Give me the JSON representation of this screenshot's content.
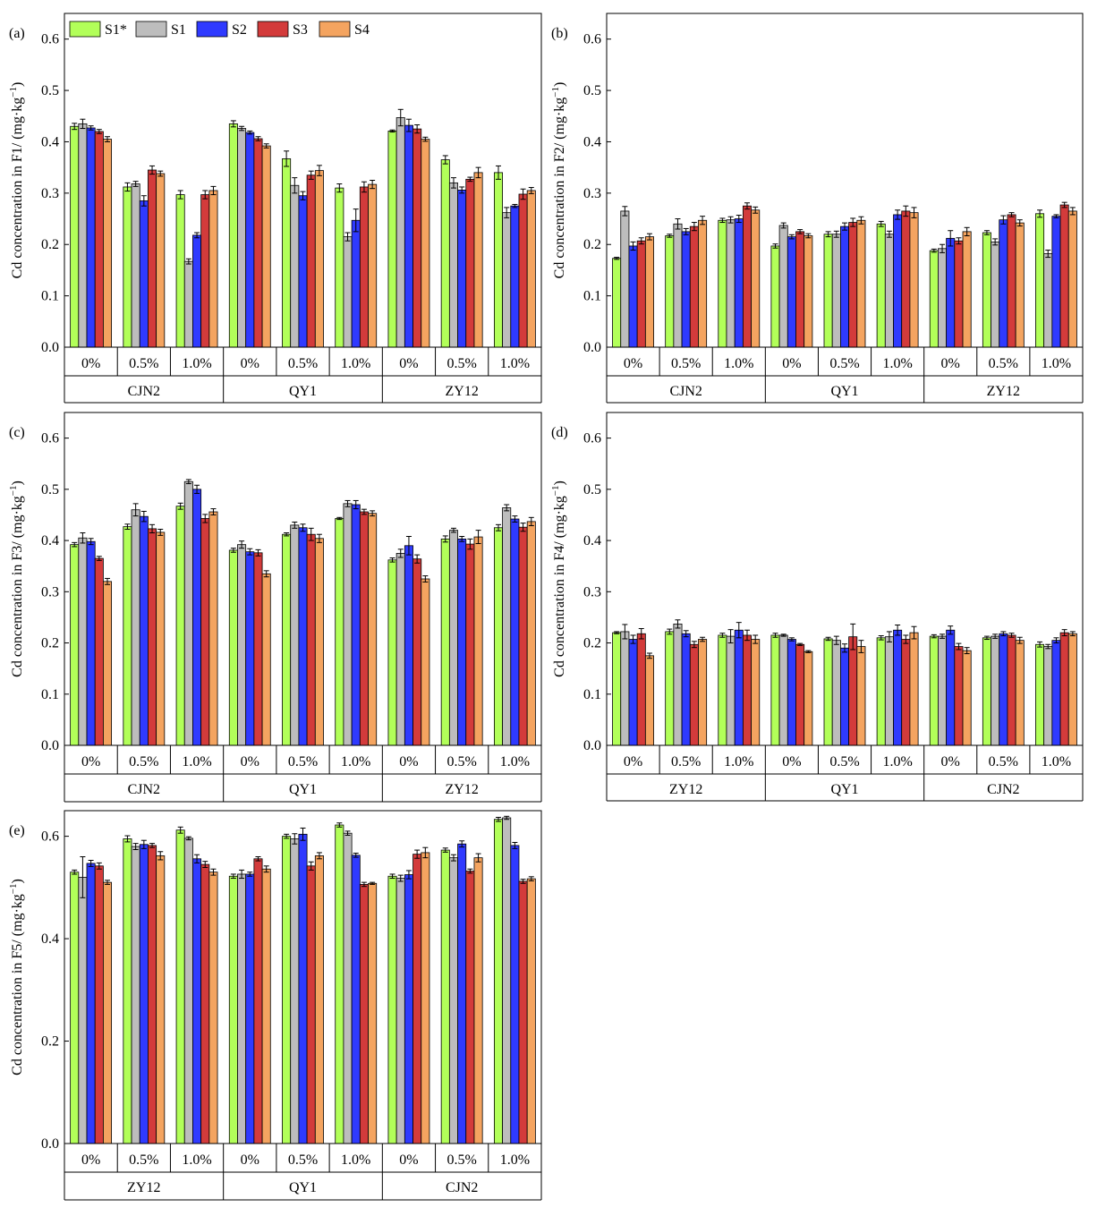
{
  "legend": [
    {
      "key": "S1*",
      "color": "#b2ff59"
    },
    {
      "key": "S1",
      "color": "#bdbdbd"
    },
    {
      "key": "S2",
      "color": "#2f3aff"
    },
    {
      "key": "S3",
      "color": "#d33b3b"
    },
    {
      "key": "S4",
      "color": "#f4a460"
    }
  ],
  "chart_data": [
    {
      "type": "bar",
      "panel_label": "(a)",
      "ylabel_main": "Cd concentration in F1/ (mg·kg",
      "ylabel_sup": "−1",
      "ylabel_end": ")",
      "ylim": [
        0,
        0.65
      ],
      "yticks": [
        0,
        0.1,
        0.2,
        0.3,
        0.4,
        0.5,
        0.6
      ],
      "tick_decimals": 1,
      "legend_position": "top-left",
      "groups": [
        "CJN2",
        "QY1",
        "ZY12"
      ],
      "levels": [
        "0%",
        "0.5%",
        "1.0%"
      ],
      "series": [
        "S1*",
        "S1",
        "S2",
        "S3",
        "S4"
      ],
      "values": [
        [
          [
            0.43,
            0.435,
            0.427,
            0.42,
            0.405
          ],
          [
            0.312,
            0.318,
            0.285,
            0.345,
            0.338
          ],
          [
            0.297,
            0.167,
            0.218,
            0.297,
            0.305
          ]
        ],
        [
          [
            0.435,
            0.426,
            0.418,
            0.406,
            0.392
          ],
          [
            0.367,
            0.315,
            0.295,
            0.335,
            0.344
          ],
          [
            0.31,
            0.215,
            0.247,
            0.312,
            0.317
          ]
        ],
        [
          [
            0.421,
            0.447,
            0.432,
            0.425,
            0.405
          ],
          [
            0.365,
            0.32,
            0.306,
            0.327,
            0.34
          ],
          [
            0.34,
            0.262,
            0.275,
            0.298,
            0.305
          ]
        ]
      ],
      "errors": [
        [
          [
            0.006,
            0.009,
            0.004,
            0.004,
            0.005
          ],
          [
            0.008,
            0.005,
            0.01,
            0.008,
            0.005
          ],
          [
            0.008,
            0.005,
            0.005,
            0.008,
            0.008
          ]
        ],
        [
          [
            0.006,
            0.004,
            0.003,
            0.004,
            0.004
          ],
          [
            0.015,
            0.015,
            0.008,
            0.008,
            0.01
          ],
          [
            0.008,
            0.008,
            0.022,
            0.01,
            0.008
          ]
        ],
        [
          [
            0.002,
            0.016,
            0.012,
            0.008,
            0.004
          ],
          [
            0.008,
            0.01,
            0.006,
            0.004,
            0.01
          ],
          [
            0.013,
            0.01,
            0.003,
            0.01,
            0.006
          ]
        ]
      ]
    },
    {
      "type": "bar",
      "panel_label": "(b)",
      "ylabel_main": "Cd concentration in F2/ (mg·kg",
      "ylabel_sup": "−1",
      "ylabel_end": ")",
      "ylim": [
        0,
        0.65
      ],
      "yticks": [
        0,
        0.1,
        0.2,
        0.3,
        0.4,
        0.5,
        0.6
      ],
      "tick_decimals": 1,
      "groups": [
        "CJN2",
        "QY1",
        "ZY12"
      ],
      "levels": [
        "0%",
        "0.5%",
        "1.0%"
      ],
      "series": [
        "S1*",
        "S1",
        "S2",
        "S3",
        "S4"
      ],
      "values": [
        [
          [
            0.173,
            0.265,
            0.197,
            0.207,
            0.215
          ],
          [
            0.217,
            0.24,
            0.225,
            0.235,
            0.247
          ],
          [
            0.247,
            0.248,
            0.25,
            0.275,
            0.267
          ]
        ],
        [
          [
            0.197,
            0.237,
            0.215,
            0.225,
            0.217
          ],
          [
            0.22,
            0.22,
            0.235,
            0.243,
            0.247
          ],
          [
            0.24,
            0.22,
            0.258,
            0.265,
            0.262
          ]
        ],
        [
          [
            0.188,
            0.192,
            0.212,
            0.207,
            0.225
          ],
          [
            0.223,
            0.205,
            0.248,
            0.258,
            0.242
          ],
          [
            0.26,
            0.182,
            0.255,
            0.277,
            0.265
          ]
        ]
      ],
      "errors": [
        [
          [
            0.002,
            0.009,
            0.008,
            0.006,
            0.006
          ],
          [
            0.003,
            0.01,
            0.006,
            0.008,
            0.008
          ],
          [
            0.004,
            0.006,
            0.007,
            0.006,
            0.006
          ]
        ],
        [
          [
            0.004,
            0.005,
            0.004,
            0.004,
            0.004
          ],
          [
            0.005,
            0.006,
            0.007,
            0.008,
            0.007
          ],
          [
            0.005,
            0.006,
            0.009,
            0.01,
            0.01
          ]
        ],
        [
          [
            0.003,
            0.008,
            0.015,
            0.006,
            0.008
          ],
          [
            0.004,
            0.006,
            0.008,
            0.004,
            0.006
          ],
          [
            0.007,
            0.007,
            0.003,
            0.005,
            0.007
          ]
        ]
      ]
    },
    {
      "type": "bar",
      "panel_label": "(c)",
      "ylabel_main": "Cd concentration in F3/ (mg·kg",
      "ylabel_sup": "−1",
      "ylabel_end": ")",
      "ylim": [
        0,
        0.65
      ],
      "yticks": [
        0,
        0.1,
        0.2,
        0.3,
        0.4,
        0.5,
        0.6
      ],
      "tick_decimals": 1,
      "groups": [
        "CJN2",
        "QY1",
        "ZY12"
      ],
      "levels": [
        "0%",
        "0.5%",
        "1.0%"
      ],
      "series": [
        "S1*",
        "S1",
        "S2",
        "S3",
        "S4"
      ],
      "values": [
        [
          [
            0.392,
            0.405,
            0.398,
            0.365,
            0.32
          ],
          [
            0.427,
            0.46,
            0.447,
            0.423,
            0.416
          ],
          [
            0.467,
            0.515,
            0.5,
            0.443,
            0.456
          ]
        ],
        [
          [
            0.381,
            0.392,
            0.378,
            0.376,
            0.335
          ],
          [
            0.412,
            0.43,
            0.425,
            0.412,
            0.404
          ],
          [
            0.443,
            0.472,
            0.47,
            0.456,
            0.453
          ]
        ],
        [
          [
            0.362,
            0.375,
            0.39,
            0.364,
            0.325
          ],
          [
            0.403,
            0.42,
            0.403,
            0.393,
            0.407
          ],
          [
            0.425,
            0.464,
            0.442,
            0.426,
            0.437
          ]
        ]
      ],
      "errors": [
        [
          [
            0.004,
            0.01,
            0.006,
            0.004,
            0.006
          ],
          [
            0.005,
            0.012,
            0.01,
            0.008,
            0.006
          ],
          [
            0.006,
            0.004,
            0.008,
            0.008,
            0.006
          ]
        ],
        [
          [
            0.004,
            0.007,
            0.006,
            0.006,
            0.006
          ],
          [
            0.003,
            0.006,
            0.007,
            0.012,
            0.008
          ],
          [
            0.002,
            0.006,
            0.008,
            0.005,
            0.005
          ]
        ],
        [
          [
            0.004,
            0.008,
            0.018,
            0.008,
            0.006
          ],
          [
            0.006,
            0.004,
            0.005,
            0.01,
            0.013
          ],
          [
            0.006,
            0.006,
            0.006,
            0.008,
            0.008
          ]
        ]
      ]
    },
    {
      "type": "bar",
      "panel_label": "(d)",
      "ylabel_main": "Cd concentration in F4/ (mg·kg",
      "ylabel_sup": "−1",
      "ylabel_end": ")",
      "ylim": [
        0,
        0.65
      ],
      "yticks": [
        0,
        0.1,
        0.2,
        0.3,
        0.4,
        0.5,
        0.6
      ],
      "tick_decimals": 1,
      "groups": [
        "ZY12",
        "QY1",
        "CJN2"
      ],
      "levels": [
        "0%",
        "0.5%",
        "1.0%"
      ],
      "series": [
        "S1*",
        "S1",
        "S2",
        "S3",
        "S4"
      ],
      "values": [
        [
          [
            0.22,
            0.222,
            0.207,
            0.218,
            0.175
          ],
          [
            0.222,
            0.237,
            0.218,
            0.197,
            0.207
          ],
          [
            0.215,
            0.213,
            0.225,
            0.215,
            0.207
          ]
        ],
        [
          [
            0.215,
            0.215,
            0.207,
            0.197,
            0.183
          ],
          [
            0.208,
            0.205,
            0.19,
            0.212,
            0.193
          ],
          [
            0.21,
            0.212,
            0.225,
            0.207,
            0.22
          ]
        ],
        [
          [
            0.213,
            0.213,
            0.225,
            0.193,
            0.185
          ],
          [
            0.21,
            0.213,
            0.218,
            0.215,
            0.205
          ],
          [
            0.197,
            0.193,
            0.205,
            0.22,
            0.218
          ]
        ]
      ],
      "errors": [
        [
          [
            0.002,
            0.014,
            0.008,
            0.01,
            0.005
          ],
          [
            0.005,
            0.008,
            0.006,
            0.006,
            0.004
          ],
          [
            0.004,
            0.013,
            0.015,
            0.01,
            0.008
          ]
        ],
        [
          [
            0.004,
            0.002,
            0.003,
            0.002,
            0.002
          ],
          [
            0.003,
            0.008,
            0.008,
            0.025,
            0.012
          ],
          [
            0.004,
            0.01,
            0.01,
            0.008,
            0.012
          ]
        ],
        [
          [
            0.003,
            0.004,
            0.008,
            0.006,
            0.006
          ],
          [
            0.003,
            0.004,
            0.004,
            0.004,
            0.006
          ],
          [
            0.005,
            0.004,
            0.005,
            0.006,
            0.004
          ]
        ]
      ]
    },
    {
      "type": "bar",
      "panel_label": "(e)",
      "ylabel_main": "Cd concentration in F5/ (mg·kg",
      "ylabel_sup": "−1",
      "ylabel_end": ")",
      "ylim": [
        0,
        0.65
      ],
      "yticks": [
        0,
        0.2,
        0.4,
        0.6
      ],
      "tick_decimals": 1,
      "groups": [
        "ZY12",
        "QY1",
        "CJN2"
      ],
      "levels": [
        "0%",
        "0.5%",
        "1.0%"
      ],
      "series": [
        "S1*",
        "S1",
        "S2",
        "S3",
        "S4"
      ],
      "values": [
        [
          [
            0.53,
            0.52,
            0.547,
            0.542,
            0.51
          ],
          [
            0.595,
            0.58,
            0.584,
            0.582,
            0.562
          ],
          [
            0.612,
            0.596,
            0.556,
            0.545,
            0.53
          ]
        ],
        [
          [
            0.522,
            0.526,
            0.526,
            0.556,
            0.536
          ],
          [
            0.6,
            0.595,
            0.604,
            0.542,
            0.562
          ],
          [
            0.622,
            0.606,
            0.563,
            0.506,
            0.508
          ]
        ],
        [
          [
            0.522,
            0.518,
            0.525,
            0.565,
            0.568
          ],
          [
            0.573,
            0.558,
            0.585,
            0.532,
            0.558
          ],
          [
            0.633,
            0.636,
            0.582,
            0.512,
            0.517
          ]
        ]
      ],
      "errors": [
        [
          [
            0.004,
            0.04,
            0.006,
            0.006,
            0.004
          ],
          [
            0.006,
            0.006,
            0.008,
            0.004,
            0.008
          ],
          [
            0.006,
            0.003,
            0.008,
            0.006,
            0.006
          ]
        ],
        [
          [
            0.004,
            0.008,
            0.004,
            0.004,
            0.006
          ],
          [
            0.004,
            0.01,
            0.012,
            0.008,
            0.006
          ],
          [
            0.004,
            0.004,
            0.004,
            0.004,
            0.002
          ]
        ],
        [
          [
            0.004,
            0.006,
            0.008,
            0.008,
            0.01
          ],
          [
            0.004,
            0.006,
            0.006,
            0.004,
            0.008
          ],
          [
            0.004,
            0.003,
            0.006,
            0.004,
            0.004
          ]
        ]
      ]
    }
  ]
}
